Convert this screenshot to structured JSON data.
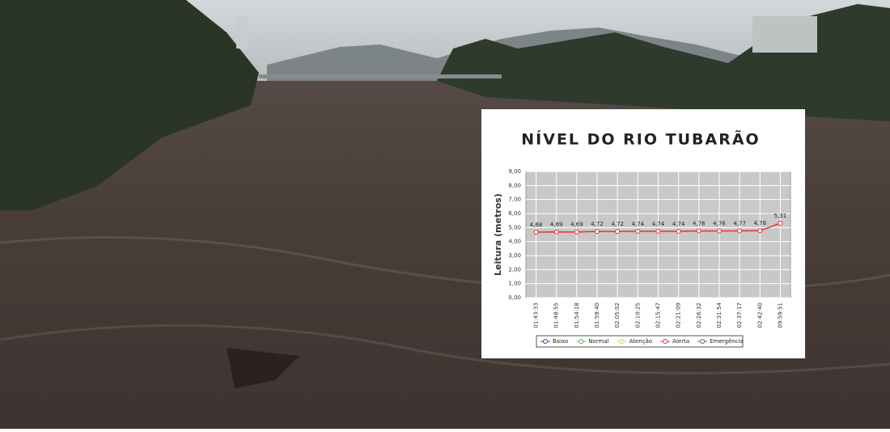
{
  "chart_data": {
    "type": "line",
    "title": "NÍVEL DO RIO TUBARÃO",
    "y_label": "Leitura (metros)",
    "categories": [
      "01:43:33",
      "01:48:55",
      "01:54:18",
      "01:59:40",
      "02:05:02",
      "02:10:25",
      "02:15:47",
      "02:21:09",
      "02:26:32",
      "02:31:54",
      "02:37:17",
      "02:42:40",
      "09:59:51"
    ],
    "series": [
      {
        "name": "Baixo",
        "color": "#4040c0",
        "values": [
          null,
          null,
          null,
          null,
          null,
          null,
          null,
          null,
          null,
          null,
          null,
          null,
          null
        ]
      },
      {
        "name": "Normal",
        "color": "#40c040",
        "values": [
          null,
          null,
          null,
          null,
          null,
          null,
          null,
          null,
          null,
          null,
          null,
          null,
          null
        ]
      },
      {
        "name": "Atenção",
        "color": "#e0d020",
        "values": [
          null,
          null,
          null,
          null,
          null,
          null,
          null,
          null,
          null,
          null,
          null,
          null,
          null
        ]
      },
      {
        "name": "Alerta",
        "color": "#e83030",
        "values": [
          4.68,
          4.69,
          4.69,
          4.72,
          4.72,
          4.74,
          4.74,
          4.74,
          4.76,
          4.76,
          4.77,
          4.78,
          5.31
        ],
        "value_labels": [
          "4,68",
          "4,69",
          "4,69",
          "4,72",
          "4,72",
          "4,74",
          "4,74",
          "4,74",
          "4,76",
          "4,76",
          "4,77",
          "4,78",
          "5,31"
        ]
      },
      {
        "name": "Emergência",
        "color": "#a040a0",
        "values": [
          null,
          null,
          null,
          null,
          null,
          null,
          null,
          null,
          null,
          null,
          null,
          null,
          null
        ]
      }
    ],
    "ylim": [
      0,
      9
    ],
    "yticks": [
      {
        "value": 0,
        "label": "0,00"
      },
      {
        "value": 1,
        "label": "1,00"
      },
      {
        "value": 2,
        "label": "2,00"
      },
      {
        "value": 3,
        "label": "3,00"
      },
      {
        "value": 4,
        "label": "4,00"
      },
      {
        "value": 5,
        "label": "5,00"
      },
      {
        "value": 6,
        "label": "6,00"
      },
      {
        "value": 7,
        "label": "7,00"
      },
      {
        "value": 8,
        "label": "8,00"
      },
      {
        "value": 9,
        "label": "9,00"
      }
    ],
    "grid": true
  }
}
